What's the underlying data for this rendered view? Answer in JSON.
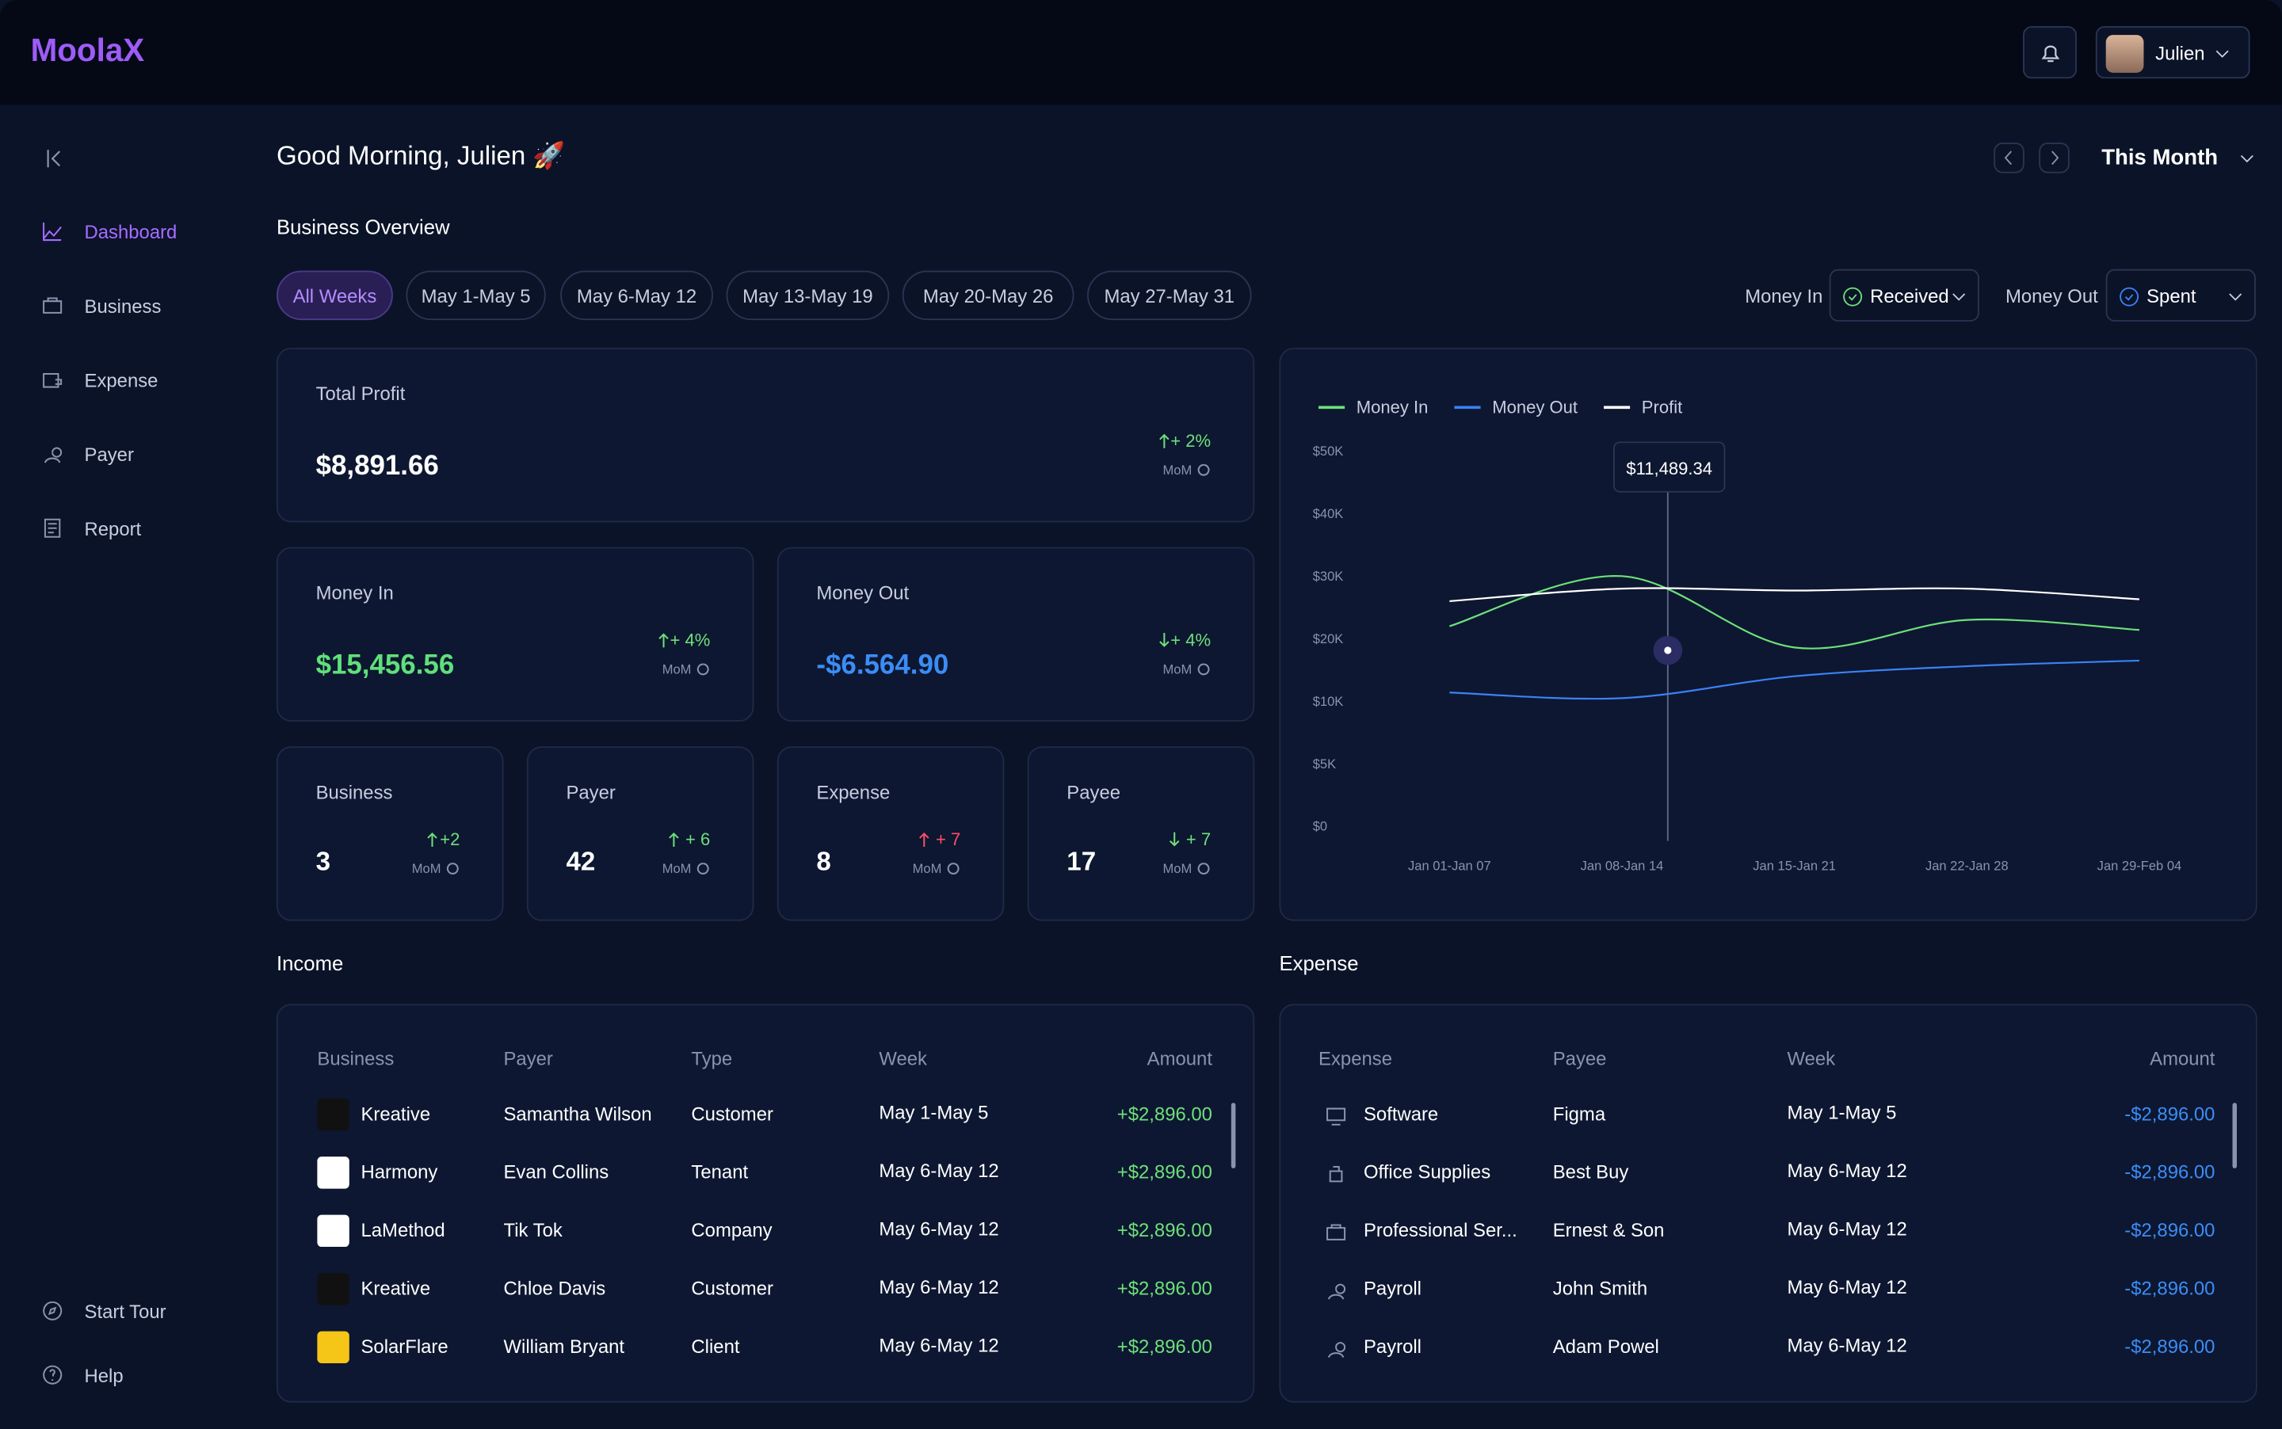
{
  "header": {
    "logo": "MoolaX",
    "user": "Julien"
  },
  "sidebar": {
    "items": [
      "Dashboard",
      "Business",
      "Expense",
      "Payer",
      "Report"
    ],
    "bottom": [
      "Start Tour",
      "Help"
    ]
  },
  "greeting": "Good Morning, Julien 🚀",
  "period": "This Month",
  "section_title": "Business Overview",
  "week_tabs": [
    "All Weeks",
    "May 1-May 5",
    "May 6-May 12",
    "May 13-May 19",
    "May 20-May 26",
    "May 27-May 31"
  ],
  "filters": {
    "money_in_label": "Money In",
    "money_in_value": "Received",
    "money_out_label": "Money Out",
    "money_out_value": "Spent"
  },
  "cards": [
    {
      "title": "Total Profit",
      "value": "$8,891.66",
      "change": "+ 2%",
      "note": "MoM"
    },
    {
      "title": "Money In",
      "value": "$15,456.56",
      "change": "+ 4%",
      "note": "MoM"
    },
    {
      "title": "Money Out",
      "value": "-$6.564.90",
      "change": "+ 4%",
      "note": "MoM"
    },
    {
      "title": "Business",
      "value": "3",
      "change": "+2",
      "note": "MoM"
    },
    {
      "title": "Payer",
      "value": "42",
      "change": "+ 6",
      "note": "MoM"
    },
    {
      "title": "Expense",
      "value": "8",
      "change": "+ 7",
      "note": "MoM"
    },
    {
      "title": "Payee",
      "value": "17",
      "change": "+ 7",
      "note": "MoM"
    }
  ],
  "chart": {
    "type": "line",
    "categories": [
      "Jan 01-Jan 07",
      "Jan 08-Jan 14",
      "Jan 15-Jan 21",
      "Jan 22-Jan 28",
      "Jan 29-Feb 04"
    ],
    "series": [
      {
        "name": "Money In",
        "color": "#6ee07a",
        "values": [
          22000,
          30000,
          18600,
          23000,
          21400
        ]
      },
      {
        "name": "Money Out",
        "color": "#3b82f6",
        "values": [
          11400,
          10500,
          14000,
          15600,
          16500
        ]
      },
      {
        "name": "Profit",
        "color": "#ffffff",
        "values": [
          26000,
          28000,
          27700,
          28000,
          26300
        ]
      }
    ],
    "ylim": [
      0,
      50000
    ],
    "yticks": [
      {
        "value": 0,
        "label": "$0"
      },
      {
        "value": 5000,
        "label": "$5K"
      },
      {
        "value": 10000,
        "label": "$10K"
      },
      {
        "value": 20000,
        "label": "$20K"
      },
      {
        "value": 30000,
        "label": "$30K"
      },
      {
        "value": 40000,
        "label": "$40K"
      },
      {
        "value": 50000,
        "label": "$50K"
      }
    ],
    "tooltip": "$11,489.34"
  },
  "income": {
    "title": "Income",
    "columns": [
      "Business",
      "Payer",
      "Type",
      "Week",
      "Amount"
    ],
    "rows": [
      [
        "Kreative",
        "Samantha Wilson",
        "Customer",
        "May 1-May 5",
        "+$2,896.00"
      ],
      [
        "Harmony",
        "Evan Collins",
        "Tenant",
        "May 6-May 12",
        "+$2,896.00"
      ],
      [
        "LaMethod",
        "Tik Tok",
        "Company",
        "May 6-May 12",
        "+$2,896.00"
      ],
      [
        "Kreative",
        "Chloe Davis",
        "Customer",
        "May 6-May 12",
        "+$2,896.00"
      ],
      [
        "SolarFlare",
        "William Bryant",
        "Client",
        "May 6-May 12",
        "+$2,896.00"
      ]
    ]
  },
  "expense": {
    "title": "Expense",
    "columns": [
      "Expense",
      "Payee",
      "Week",
      "Amount"
    ],
    "rows": [
      [
        "Software",
        "Figma",
        "May 1-May 5",
        "-$2,896.00"
      ],
      [
        "Office Supplies",
        "Best Buy",
        "May 6-May 12",
        "-$2,896.00"
      ],
      [
        "Professional Ser...",
        "Ernest & Son",
        "May 6-May 12",
        "-$2,896.00"
      ],
      [
        "Payroll",
        "John Smith",
        "May 6-May 12",
        "-$2,896.00"
      ],
      [
        "Payroll",
        "Adam Powel",
        "May 6-May 12",
        "-$2,896.00"
      ]
    ]
  }
}
